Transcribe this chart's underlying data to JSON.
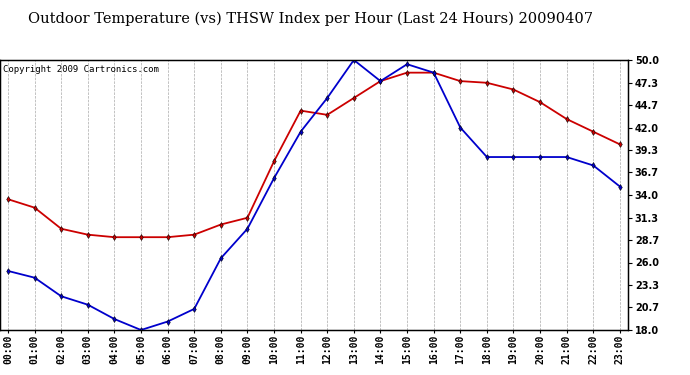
{
  "title": "Outdoor Temperature (vs) THSW Index per Hour (Last 24 Hours) 20090407",
  "copyright": "Copyright 2009 Cartronics.com",
  "hours": [
    0,
    1,
    2,
    3,
    4,
    5,
    6,
    7,
    8,
    9,
    10,
    11,
    12,
    13,
    14,
    15,
    16,
    17,
    18,
    19,
    20,
    21,
    22,
    23
  ],
  "hour_labels": [
    "00:00",
    "01:00",
    "02:00",
    "03:00",
    "04:00",
    "05:00",
    "06:00",
    "07:00",
    "08:00",
    "09:00",
    "10:00",
    "11:00",
    "12:00",
    "13:00",
    "14:00",
    "15:00",
    "16:00",
    "17:00",
    "18:00",
    "19:00",
    "20:00",
    "21:00",
    "22:00",
    "23:00"
  ],
  "temp_blue": [
    25.0,
    24.2,
    22.0,
    21.0,
    19.3,
    18.0,
    19.0,
    20.5,
    26.5,
    30.0,
    36.0,
    41.5,
    45.5,
    50.0,
    47.5,
    49.5,
    48.5,
    42.0,
    38.5,
    38.5,
    38.5,
    38.5,
    37.5,
    35.0
  ],
  "thsw_red": [
    33.5,
    32.5,
    30.0,
    29.3,
    29.0,
    29.0,
    29.0,
    29.3,
    30.5,
    31.3,
    38.0,
    44.0,
    43.5,
    45.5,
    47.5,
    48.5,
    48.5,
    47.5,
    47.3,
    46.5,
    45.0,
    43.0,
    41.5,
    40.0
  ],
  "ylim": [
    18.0,
    50.0
  ],
  "yticks": [
    18.0,
    20.7,
    23.3,
    26.0,
    28.7,
    31.3,
    34.0,
    36.7,
    39.3,
    42.0,
    44.7,
    47.3,
    50.0
  ],
  "ytick_labels": [
    "18.0",
    "20.7",
    "23.3",
    "26.0",
    "28.7",
    "31.3",
    "34.0",
    "36.7",
    "39.3",
    "42.0",
    "44.7",
    "47.3",
    "50.0"
  ],
  "blue_color": "#0000cc",
  "red_color": "#cc0000",
  "bg_color": "#ffffff",
  "grid_color": "#aaaaaa",
  "title_fontsize": 10.5,
  "copyright_fontsize": 6.5,
  "tick_fontsize": 7,
  "xlabel_fontsize": 7
}
